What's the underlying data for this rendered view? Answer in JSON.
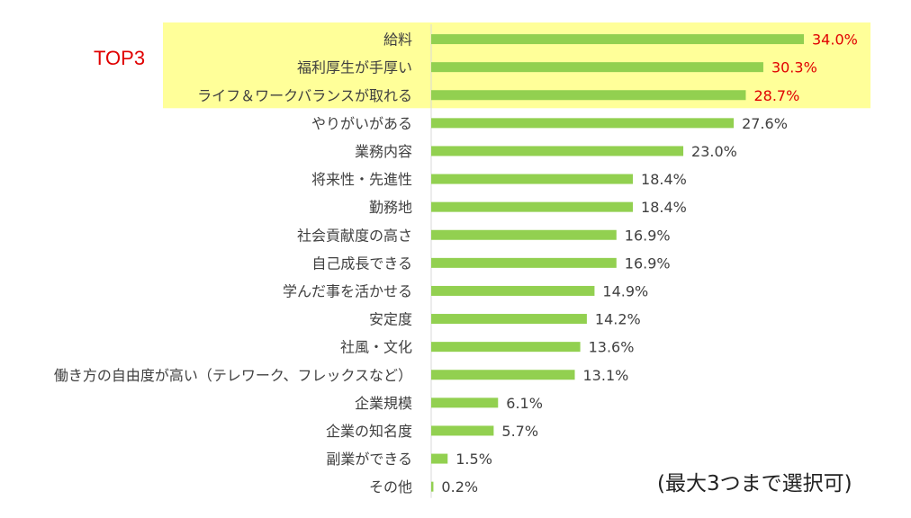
{
  "top_label": "TOP3",
  "footnote": "(最大3つまで選択可)",
  "colors": {
    "bar": "#92d050",
    "highlight": "#ffff99",
    "top_text": "#e00000",
    "text": "#404040"
  },
  "chart_data": {
    "type": "bar",
    "orientation": "horizontal",
    "unit": "%",
    "categories": [
      "給料",
      "福利厚生が手厚い",
      "ライフ＆ワークバランスが取れる",
      "やりがいがある",
      "業務内容",
      "将来性・先進性",
      "勤務地",
      "社会貢献度の高さ",
      "自己成長できる",
      "学んだ事を活かせる",
      "安定度",
      "社風・文化",
      "働き方の自由度が高い（テレワーク、フレックスなど）",
      "企業規模",
      "企業の知名度",
      "副業ができる",
      "その他"
    ],
    "values": [
      34.0,
      30.3,
      28.7,
      27.6,
      23.0,
      18.4,
      18.4,
      16.9,
      16.9,
      14.9,
      14.2,
      13.6,
      13.1,
      6.1,
      5.7,
      1.5,
      0.2
    ],
    "value_labels": [
      "34.0%",
      "30.3%",
      "28.7%",
      "27.6%",
      "23.0%",
      "18.4%",
      "18.4%",
      "16.9%",
      "16.9%",
      "14.9%",
      "14.2%",
      "13.6%",
      "13.1%",
      "6.1%",
      "5.7%",
      "1.5%",
      "0.2%"
    ],
    "highlighted_top": 3,
    "xlim": [
      0,
      40
    ],
    "grid": false,
    "legend": "none"
  }
}
